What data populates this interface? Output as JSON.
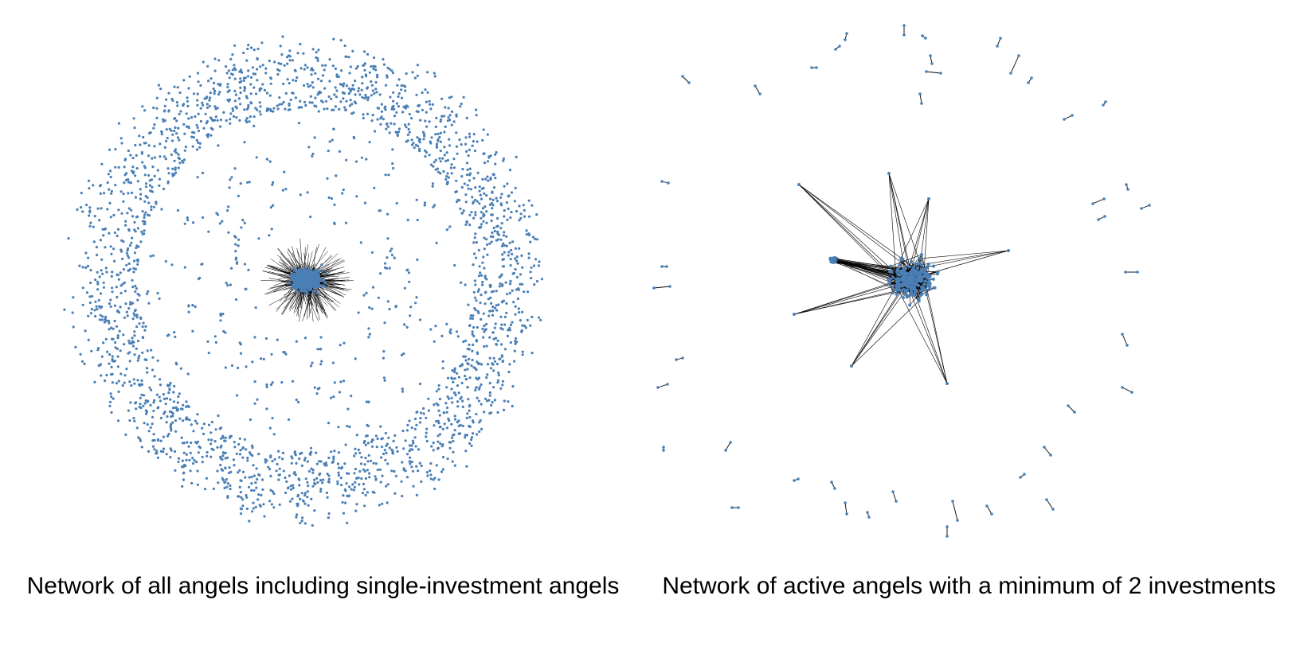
{
  "colors": {
    "node": "#4a7fb5",
    "edge": "#000000",
    "background": "#ffffff",
    "text": "#000000"
  },
  "left_panel": {
    "caption": "Network of all angels including single-investment angels"
  },
  "right_panel": {
    "caption": "Network of active angels with a minimum of 2 investments"
  }
}
